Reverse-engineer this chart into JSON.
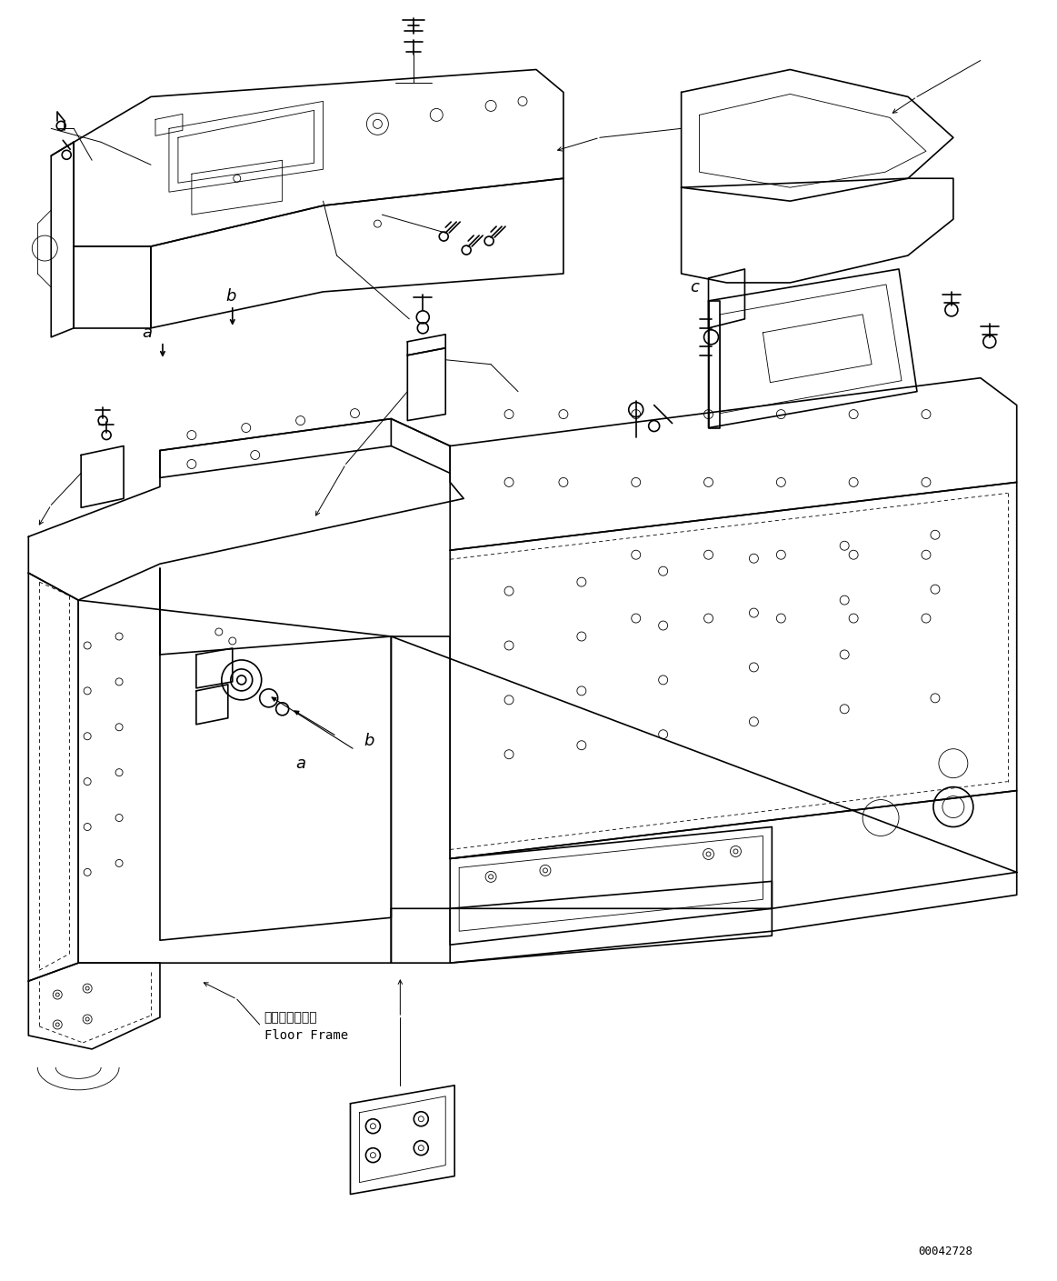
{
  "figure_width": 11.63,
  "figure_height": 14.09,
  "dpi": 100,
  "background_color": "#ffffff",
  "line_color": "#000000",
  "lw_main": 1.2,
  "lw_thin": 0.6,
  "lw_leader": 0.7,
  "watermark_text": "00042728",
  "floor_frame_ja": "フロアフレーム",
  "floor_frame_en": "Floor Frame"
}
